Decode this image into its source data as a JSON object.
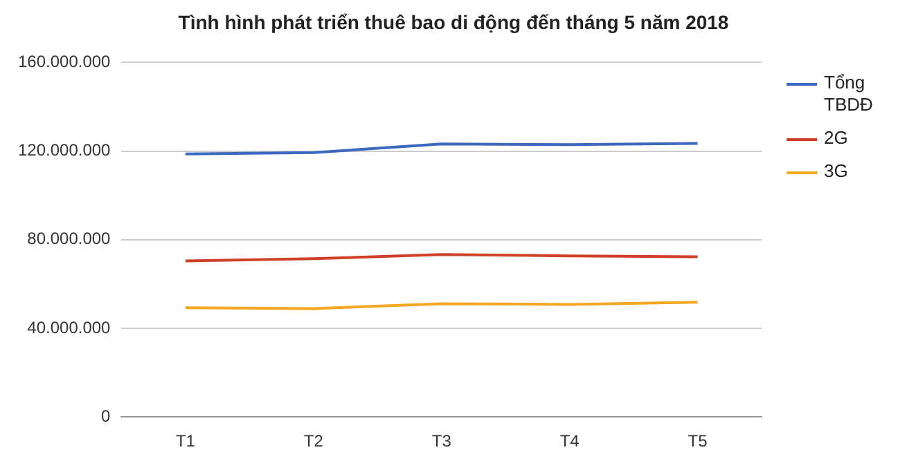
{
  "chart_data": {
    "type": "line",
    "title": "Tình hình phát triển thuê bao di động đến tháng 5 năm 2018",
    "categories": [
      "T1",
      "T2",
      "T3",
      "T4",
      "T5"
    ],
    "series": [
      {
        "name": "Tổng TBDĐ",
        "color": "#3c68c0",
        "values": [
          118700000,
          119300000,
          123200000,
          122900000,
          123500000
        ]
      },
      {
        "name": "2G",
        "color": "#cf4126",
        "values": [
          70400000,
          71400000,
          73300000,
          72700000,
          72300000
        ]
      },
      {
        "name": "3G",
        "color": "#f5a623",
        "values": [
          49300000,
          48900000,
          51100000,
          50800000,
          51800000
        ]
      }
    ],
    "ylim": [
      0,
      160000000
    ],
    "yticks": [
      {
        "value": 0,
        "label": "0"
      },
      {
        "value": 40000000,
        "label": "40.000.000"
      },
      {
        "value": 80000000,
        "label": "80.000.000"
      },
      {
        "value": 120000000,
        "label": "120.000.000"
      },
      {
        "value": 160000000,
        "label": "160.000.000"
      }
    ],
    "grid": "y",
    "legend": "right",
    "marker": "none"
  }
}
